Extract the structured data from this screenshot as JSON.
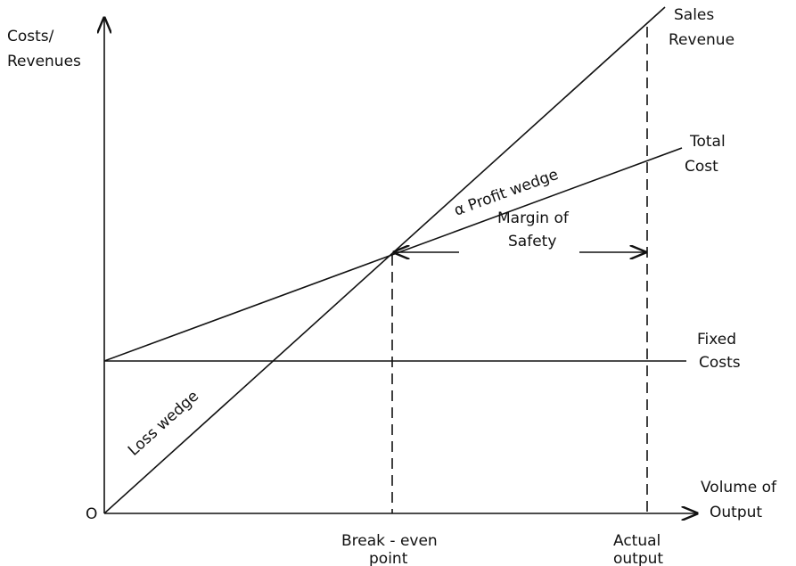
{
  "diagram": {
    "y_axis_label": [
      "Costs/",
      "Revenues"
    ],
    "x_axis_label": [
      "Volume of",
      "Output"
    ],
    "origin": "O",
    "lines": {
      "sales_revenue": [
        "Sales",
        "Revenue"
      ],
      "total_cost": [
        "Total",
        "Cost"
      ],
      "fixed_costs": [
        "Fixed",
        "Costs"
      ]
    },
    "annotations": {
      "loss_wedge": "Loss wedge",
      "profit_wedge": "α Profit wedge",
      "margin_of_safety": [
        "Margin of",
        "Safety"
      ],
      "break_even_point": [
        "Break - even",
        "point"
      ],
      "actual_output": [
        "Actual",
        "output"
      ]
    }
  }
}
